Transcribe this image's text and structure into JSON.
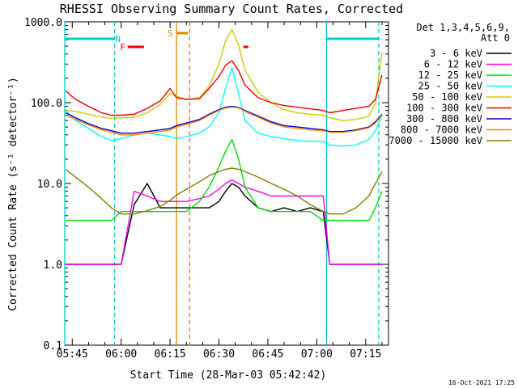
{
  "chart_data": {
    "type": "line",
    "title": "RHESSI Observing Summary Count Rates, Corrected",
    "xlabel": "Start Time (28-Mar-03 05:42:42)",
    "ylabel": "Corrected Count Rate (s⁻¹ detector⁻¹)",
    "yscale": "log",
    "ylim": [
      0.1,
      1000
    ],
    "xlim": [
      "05:42:42",
      "07:22:00"
    ],
    "x_ticks": [
      "05:45",
      "06:00",
      "06:15",
      "06:30",
      "06:45",
      "07:00",
      "07:15"
    ],
    "y_ticks": [
      "0.1",
      "1.0",
      "10.0",
      "100.0",
      "1000.0"
    ],
    "timestamp": "16-Oct-2021 17:25",
    "legend": {
      "placement": "right",
      "header": [
        "Det 1,3,4,5,6,9,",
        "Att 0"
      ]
    },
    "annotations": [
      {
        "label": "N",
        "color": "#00cccc",
        "t_start": "05:42:42",
        "t_end": "05:58:00",
        "t_label": "05:59:00"
      },
      {
        "label": "N",
        "color": "#00cccc",
        "t_start": "07:03:00",
        "t_end": "07:19:00"
      },
      {
        "label": "F",
        "color": "#ee0000",
        "t_start": "06:02:00",
        "t_end": "06:07:00",
        "t_label": "06:00:30"
      },
      {
        "label": "F",
        "color": "#ee0000",
        "t_start": "06:37:30",
        "t_end": "06:39:00"
      },
      {
        "label": "S",
        "color": "#dd8800",
        "t_start": "06:17:00",
        "t_end": "06:20:30",
        "t_label": "06:15:00"
      }
    ],
    "vertical_lines": [
      {
        "t": "05:42:42",
        "color": "#00cccc",
        "style": "solid"
      },
      {
        "t": "05:58:00",
        "color": "#00cccc",
        "style": "dashed"
      },
      {
        "t": "06:17:00",
        "color": "#dd8800",
        "style": "solid"
      },
      {
        "t": "06:21:00",
        "color": "#dd8800",
        "style": "dashed"
      },
      {
        "t": "07:03:00",
        "color": "#00cccc",
        "style": "solid"
      },
      {
        "t": "07:19:00",
        "color": "#00cccc",
        "style": "dashed"
      }
    ],
    "x": [
      "05:43",
      "05:46",
      "05:50",
      "05:54",
      "05:57",
      "06:00",
      "06:04",
      "06:08",
      "06:12",
      "06:15",
      "06:17",
      "06:20",
      "06:24",
      "06:27",
      "06:30",
      "06:32",
      "06:34",
      "06:36",
      "06:38",
      "06:42",
      "06:46",
      "06:50",
      "06:54",
      "06:58",
      "07:02",
      "07:04",
      "07:08",
      "07:12",
      "07:16",
      "07:18",
      "07:20"
    ],
    "series": [
      {
        "name": "3 - 6 keV",
        "color": "#000000",
        "values": [
          1.0,
          1.0,
          1.0,
          1.0,
          1.0,
          1.0,
          5.5,
          10.0,
          5.0,
          5.0,
          5.0,
          5.0,
          5.0,
          5.0,
          6.0,
          8.0,
          10.0,
          9.0,
          7.0,
          5.0,
          4.5,
          5.0,
          4.5,
          5.0,
          4.5,
          1.0,
          1.0,
          1.0,
          1.0,
          1.0,
          1.0
        ]
      },
      {
        "name": "6 - 12 keV",
        "color": "#ff00ff",
        "values": [
          1.0,
          1.0,
          1.0,
          1.0,
          1.0,
          1.0,
          8.0,
          7.0,
          6.0,
          6.0,
          6.0,
          6.0,
          6.5,
          7.0,
          8.5,
          10.0,
          11.0,
          10.0,
          9.0,
          8.0,
          7.0,
          7.0,
          7.0,
          7.0,
          7.0,
          1.0,
          1.0,
          1.0,
          1.0,
          1.0,
          1.0
        ]
      },
      {
        "name": "12 - 25 keV",
        "color": "#00dd00",
        "values": [
          3.5,
          3.5,
          3.5,
          3.5,
          3.5,
          4.5,
          4.5,
          4.5,
          4.5,
          4.5,
          4.5,
          4.5,
          6.0,
          9.0,
          16.0,
          25.0,
          35.0,
          20.0,
          9.0,
          5.0,
          4.5,
          4.5,
          4.5,
          4.5,
          3.5,
          3.5,
          3.5,
          3.5,
          3.5,
          5.0,
          8.0
        ]
      },
      {
        "name": "25 - 50 keV",
        "color": "#00ffff",
        "values": [
          80,
          60,
          48,
          38,
          34,
          36,
          40,
          42,
          40,
          38,
          36,
          38,
          42,
          50,
          75,
          150,
          270,
          130,
          60,
          42,
          38,
          36,
          34,
          33,
          33,
          30,
          29,
          30,
          35,
          45,
          70
        ]
      },
      {
        "name": "50 - 100 keV",
        "color": "#cccc00",
        "values": [
          80,
          78,
          72,
          66,
          64,
          65,
          66,
          75,
          95,
          130,
          120,
          110,
          115,
          160,
          300,
          580,
          800,
          520,
          250,
          135,
          100,
          82,
          75,
          72,
          70,
          65,
          60,
          62,
          68,
          100,
          420
        ]
      },
      {
        "name": "100 - 300 keV",
        "color": "#ee0000",
        "values": [
          140,
          110,
          90,
          75,
          70,
          70,
          72,
          85,
          105,
          150,
          115,
          110,
          112,
          150,
          210,
          290,
          330,
          250,
          165,
          115,
          100,
          92,
          88,
          84,
          80,
          75,
          80,
          85,
          90,
          110,
          220
        ]
      },
      {
        "name": "300 - 800 keV",
        "color": "#0000cc",
        "values": [
          75,
          65,
          55,
          48,
          45,
          42,
          42,
          44,
          46,
          48,
          52,
          56,
          62,
          72,
          82,
          88,
          90,
          87,
          80,
          68,
          58,
          52,
          50,
          48,
          46,
          44,
          44,
          46,
          50,
          58,
          72
        ]
      },
      {
        "name": "800 - 7000 keV",
        "color": "#ff8800",
        "values": [
          70,
          62,
          53,
          46,
          43,
          40,
          40,
          42,
          44,
          46,
          50,
          54,
          60,
          70,
          80,
          86,
          88,
          86,
          78,
          66,
          56,
          50,
          48,
          46,
          45,
          43,
          43,
          45,
          49,
          56,
          70
        ]
      },
      {
        "name": "7000 - 15000 keV",
        "color": "#808000",
        "values": [
          15,
          12,
          9,
          6.5,
          5,
          4.2,
          4.2,
          4.6,
          5.2,
          6.2,
          7.2,
          8.5,
          10.5,
          12.5,
          14,
          15,
          15.5,
          15,
          14,
          12,
          10,
          8.5,
          7,
          5.5,
          4.5,
          4.2,
          4.2,
          5,
          7,
          10,
          14
        ]
      }
    ]
  }
}
